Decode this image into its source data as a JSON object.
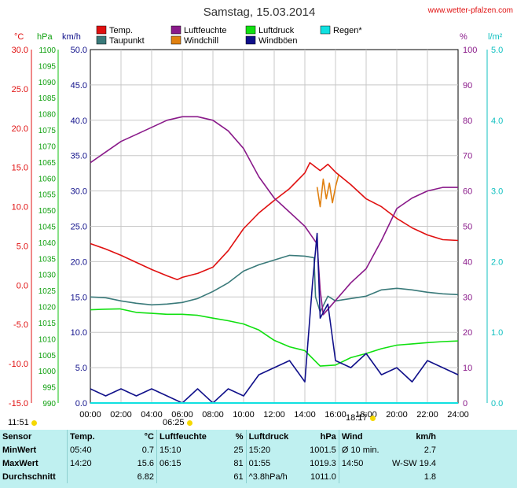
{
  "header": {
    "title": "Samstag, 15.03.2014",
    "site": "www.wetter-pfalzen.com"
  },
  "legend": [
    {
      "label": "Temp.",
      "color": "#e01010"
    },
    {
      "label": "Taupunkt",
      "color": "#3a7a7a"
    },
    {
      "label": "Luftfeuchte",
      "color": "#8a1a8a"
    },
    {
      "label": "Windchill",
      "color": "#e08010"
    },
    {
      "label": "Luftdruck",
      "color": "#10e010"
    },
    {
      "label": "Windböen",
      "color": "#10108a"
    },
    {
      "label": "Regen*",
      "color": "#10e0e0"
    }
  ],
  "axes": {
    "celsius_unit": "°C",
    "hpa_unit": "hPa",
    "kmh_unit": "km/h",
    "pct_unit": "%",
    "rain_unit": "l/m²",
    "celsius_ticks": [
      "30.0",
      "25.0",
      "20.0",
      "15.0",
      "10.0",
      "5.0",
      "0.0",
      "-5.0",
      "-10.0",
      "-15.0"
    ],
    "hpa_ticks": [
      "1100",
      "1095",
      "1090",
      "1085",
      "1080",
      "1075",
      "1070",
      "1065",
      "1060",
      "1055",
      "1050",
      "1045",
      "1040",
      "1035",
      "1030",
      "1025",
      "1020",
      "1015",
      "1010",
      "1005",
      "1000",
      "995",
      "990"
    ],
    "kmh_ticks": [
      "50.0",
      "45.0",
      "40.0",
      "35.0",
      "30.0",
      "25.0",
      "20.0",
      "15.0",
      "10.0",
      "5.0",
      "0.0"
    ],
    "pct_ticks": [
      "100",
      "90",
      "80",
      "70",
      "60",
      "50",
      "40",
      "30",
      "20",
      "10",
      "0"
    ],
    "rain_ticks": [
      "5.0",
      "4.0",
      "3.0",
      "2.0",
      "1.0",
      "0.0"
    ],
    "time_ticks": [
      "00:00",
      "02:00",
      "04:00",
      "06:00",
      "08:00",
      "10:00",
      "12:00",
      "14:00",
      "16:00",
      "18:00",
      "20:00",
      "22:00",
      "24:00"
    ]
  },
  "sun": {
    "daylength": "11:51",
    "sunrise": "06:25",
    "sunset": "18:17"
  },
  "stats": {
    "headers": {
      "sensor": "Sensor",
      "temp": "Temp.",
      "temp_unit": "°C",
      "hum": "Luftfeuchte",
      "hum_unit": "%",
      "press": "Luftdruck",
      "press_unit": "hPa",
      "wind": "Wind",
      "wind_unit": "km/h"
    },
    "rows": [
      {
        "label": "MinWert",
        "t_time": "05:40",
        "t_val": "0.7",
        "h_time": "15:10",
        "h_val": "25",
        "p_time": "15:20",
        "p_val": "1001.5",
        "w_time": "Ø 10 min.",
        "w_val": "2.7"
      },
      {
        "label": "MaxWert",
        "t_time": "14:20",
        "t_val": "15.6",
        "h_time": "06:15",
        "h_val": "81",
        "p_time": "01:55",
        "p_val": "1019.3",
        "w_time": "14:50",
        "w_val": "W-SW 19.4"
      },
      {
        "label": "Durchschnitt",
        "t_time": "",
        "t_val": "6.82",
        "h_time": "",
        "h_val": "61",
        "p_time": "^3.8hPa/h",
        "p_val": "1011.0",
        "w_time": "",
        "w_val": "1.8"
      }
    ]
  },
  "chart_data": {
    "type": "line",
    "title": "Samstag, 15.03.2014",
    "x_unit": "hours",
    "xlim": [
      0,
      24
    ],
    "scales": {
      "celsius": [
        -15,
        30
      ],
      "hpa": [
        990,
        1100
      ],
      "kmh": [
        0,
        50
      ],
      "percent": [
        0,
        100
      ],
      "rain": [
        0,
        5
      ]
    },
    "grid": true,
    "series": [
      {
        "name": "Temp.",
        "scale": "celsius",
        "color": "#e01010",
        "points": [
          [
            0,
            5.3
          ],
          [
            1,
            4.6
          ],
          [
            2,
            3.8
          ],
          [
            3,
            2.9
          ],
          [
            4,
            2.0
          ],
          [
            5,
            1.2
          ],
          [
            5.67,
            0.7
          ],
          [
            6,
            1.0
          ],
          [
            7,
            1.5
          ],
          [
            8,
            2.3
          ],
          [
            9,
            4.4
          ],
          [
            10,
            7.2
          ],
          [
            11,
            9.2
          ],
          [
            12,
            10.8
          ],
          [
            13,
            12.3
          ],
          [
            14,
            14.3
          ],
          [
            14.33,
            15.6
          ],
          [
            15,
            14.6
          ],
          [
            15.5,
            15.4
          ],
          [
            16,
            14.4
          ],
          [
            17,
            12.8
          ],
          [
            18,
            11.0
          ],
          [
            19,
            10.0
          ],
          [
            20,
            8.5
          ],
          [
            21,
            7.3
          ],
          [
            22,
            6.4
          ],
          [
            23,
            5.8
          ],
          [
            24,
            5.7
          ]
        ]
      },
      {
        "name": "Taupunkt",
        "scale": "celsius",
        "color": "#3a7a7a",
        "points": [
          [
            0,
            -1.5
          ],
          [
            1,
            -1.6
          ],
          [
            2,
            -2.0
          ],
          [
            3,
            -2.3
          ],
          [
            4,
            -2.5
          ],
          [
            5,
            -2.4
          ],
          [
            6,
            -2.2
          ],
          [
            7,
            -1.7
          ],
          [
            8,
            -0.8
          ],
          [
            9,
            0.3
          ],
          [
            10,
            1.8
          ],
          [
            11,
            2.6
          ],
          [
            12,
            3.2
          ],
          [
            13,
            3.8
          ],
          [
            14,
            3.7
          ],
          [
            14.6,
            3.5
          ],
          [
            14.7,
            -1.5
          ],
          [
            15,
            -3.4
          ],
          [
            15.5,
            -1.4
          ],
          [
            16,
            -2.0
          ],
          [
            17,
            -1.7
          ],
          [
            18,
            -1.4
          ],
          [
            19,
            -0.6
          ],
          [
            20,
            -0.4
          ],
          [
            21,
            -0.6
          ],
          [
            22,
            -0.9
          ],
          [
            23,
            -1.1
          ],
          [
            24,
            -1.2
          ]
        ]
      },
      {
        "name": "Luftfeuchte",
        "scale": "percent",
        "color": "#8a1a8a",
        "points": [
          [
            0,
            68
          ],
          [
            1,
            71
          ],
          [
            2,
            74
          ],
          [
            3,
            76
          ],
          [
            4,
            78
          ],
          [
            5,
            80
          ],
          [
            6,
            81
          ],
          [
            7,
            81
          ],
          [
            8,
            80
          ],
          [
            9,
            77
          ],
          [
            10,
            72
          ],
          [
            11,
            64
          ],
          [
            12,
            58
          ],
          [
            13,
            54
          ],
          [
            14,
            50
          ],
          [
            14.8,
            45
          ],
          [
            15,
            32
          ],
          [
            15.2,
            25
          ],
          [
            16,
            29
          ],
          [
            17,
            34
          ],
          [
            18,
            38
          ],
          [
            19,
            46
          ],
          [
            20,
            55
          ],
          [
            21,
            58
          ],
          [
            22,
            60
          ],
          [
            23,
            61
          ],
          [
            24,
            61
          ]
        ]
      },
      {
        "name": "Windchill",
        "scale": "celsius",
        "color": "#e08010",
        "points": [
          [
            14.8,
            12.5
          ],
          [
            15,
            10.0
          ],
          [
            15.2,
            13.5
          ],
          [
            15.4,
            11.0
          ],
          [
            15.6,
            13.0
          ],
          [
            15.8,
            10.5
          ],
          [
            16,
            12.5
          ],
          [
            16.2,
            14.0
          ]
        ]
      },
      {
        "name": "Luftdruck",
        "scale": "hpa",
        "color": "#10e010",
        "points": [
          [
            0,
            1019.0
          ],
          [
            1,
            1019.2
          ],
          [
            1.92,
            1019.3
          ],
          [
            3,
            1018.2
          ],
          [
            4,
            1017.9
          ],
          [
            5,
            1017.6
          ],
          [
            6,
            1017.6
          ],
          [
            7,
            1017.3
          ],
          [
            8,
            1016.4
          ],
          [
            9,
            1015.6
          ],
          [
            10,
            1014.6
          ],
          [
            11,
            1012.7
          ],
          [
            12,
            1009.5
          ],
          [
            13,
            1007.5
          ],
          [
            14,
            1006.3
          ],
          [
            15,
            1001.5
          ],
          [
            16,
            1001.8
          ],
          [
            17,
            1004.1
          ],
          [
            18,
            1005.4
          ],
          [
            19,
            1006.9
          ],
          [
            20,
            1008.0
          ],
          [
            21,
            1008.4
          ],
          [
            22,
            1008.8
          ],
          [
            23,
            1009.1
          ],
          [
            24,
            1009.3
          ]
        ]
      },
      {
        "name": "Windböen",
        "scale": "kmh",
        "color": "#10108a",
        "points": [
          [
            0,
            2
          ],
          [
            1,
            1
          ],
          [
            2,
            2
          ],
          [
            3,
            1
          ],
          [
            4,
            2
          ],
          [
            5,
            1
          ],
          [
            6,
            0
          ],
          [
            7,
            2
          ],
          [
            8,
            0
          ],
          [
            9,
            2
          ],
          [
            10,
            1
          ],
          [
            11,
            4
          ],
          [
            12,
            5
          ],
          [
            13,
            6
          ],
          [
            14,
            3
          ],
          [
            14.5,
            17
          ],
          [
            14.8,
            24
          ],
          [
            15,
            12
          ],
          [
            15.5,
            14
          ],
          [
            16,
            6
          ],
          [
            17,
            5
          ],
          [
            18,
            7
          ],
          [
            19,
            4
          ],
          [
            20,
            5
          ],
          [
            21,
            3
          ],
          [
            22,
            6
          ],
          [
            23,
            5
          ],
          [
            24,
            4
          ]
        ]
      },
      {
        "name": "Regen*",
        "scale": "rain",
        "color": "#10e0e0",
        "points": [
          [
            0,
            0
          ],
          [
            24,
            0
          ]
        ]
      }
    ]
  }
}
